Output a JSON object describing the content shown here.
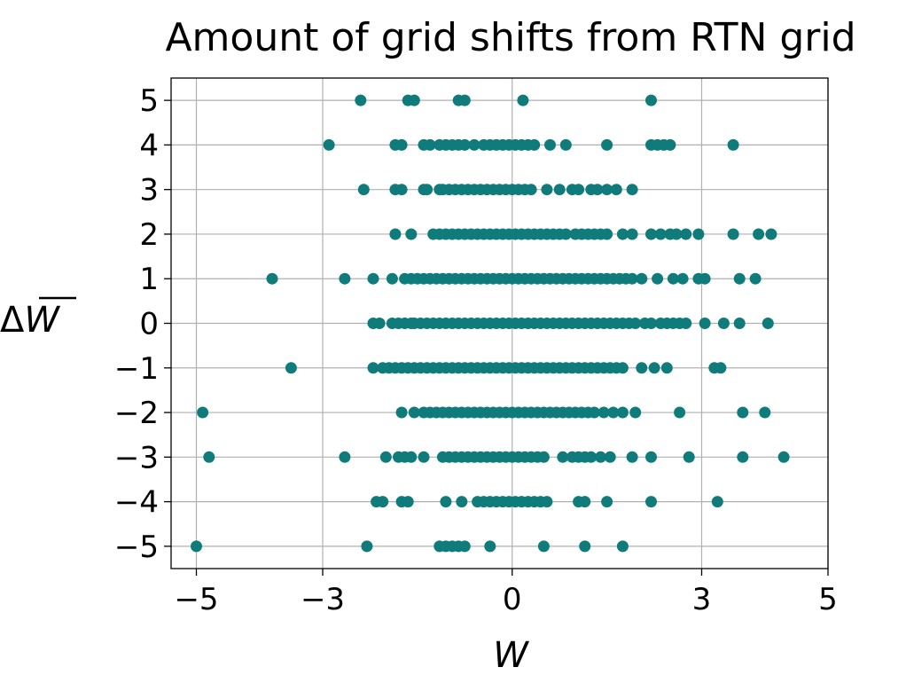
{
  "chart_data": {
    "type": "scatter",
    "title": "Amount of grid shifts from RTN grid",
    "xlabel": "W",
    "ylabel_prefix": "Δ",
    "ylabel": "W",
    "xlim": [
      -5.4,
      5.0
    ],
    "ylim": [
      -5.5,
      5.5
    ],
    "xticks": [
      -5,
      -3,
      0,
      3,
      5
    ],
    "xtick_labels": [
      "−5",
      "−3",
      "0",
      "3",
      "5"
    ],
    "yticks": [
      5,
      4,
      3,
      2,
      1,
      0,
      -1,
      -2,
      -3,
      -4,
      -5
    ],
    "ytick_labels": [
      "5",
      "4",
      "3",
      "2",
      "1",
      "0",
      "−1",
      "−2",
      "−3",
      "−4",
      "−5"
    ],
    "grid": true,
    "marker_color": "#0f7b7b",
    "points_by_level": {
      "5": [
        -2.4,
        -1.65,
        -1.55,
        -0.85,
        -0.75,
        0.17,
        2.2
      ],
      "4": [
        -2.9,
        -1.85,
        -1.75,
        -1.4,
        -1.3,
        -1.15,
        -1.05,
        -0.95,
        -0.85,
        -0.75,
        -0.6,
        -0.45,
        -0.35,
        -0.25,
        -0.15,
        -0.05,
        0.05,
        0.15,
        0.25,
        0.35,
        0.6,
        0.85,
        1.5,
        2.2,
        2.3,
        2.4,
        2.5,
        3.5
      ],
      "3": [
        -2.35,
        -1.85,
        -1.75,
        -1.4,
        -1.35,
        -1.15,
        -1.1,
        -1.0,
        -0.9,
        -0.8,
        -0.7,
        -0.6,
        -0.5,
        -0.4,
        -0.3,
        -0.2,
        -0.1,
        0.0,
        0.1,
        0.2,
        0.3,
        0.55,
        0.75,
        0.95,
        1.05,
        1.25,
        1.35,
        1.5,
        1.65,
        1.9
      ],
      "2": [
        -1.85,
        -1.6,
        -1.25,
        -1.15,
        -1.05,
        -0.95,
        -0.85,
        -0.75,
        -0.65,
        -0.55,
        -0.45,
        -0.35,
        -0.25,
        -0.15,
        -0.05,
        0.05,
        0.15,
        0.25,
        0.35,
        0.45,
        0.55,
        0.65,
        0.75,
        0.85,
        1.0,
        1.1,
        1.2,
        1.3,
        1.4,
        1.5,
        1.75,
        1.9,
        2.2,
        2.35,
        2.5,
        2.6,
        2.75,
        2.95,
        3.5,
        3.9,
        4.1
      ],
      "1": [
        -3.8,
        -2.65,
        -2.2,
        -1.9,
        -1.7,
        -1.6,
        -1.5,
        -1.4,
        -1.3,
        -1.2,
        -1.1,
        -1.0,
        -0.9,
        -0.8,
        -0.7,
        -0.6,
        -0.5,
        -0.4,
        -0.3,
        -0.2,
        -0.1,
        0.0,
        0.1,
        0.2,
        0.3,
        0.4,
        0.5,
        0.6,
        0.7,
        0.8,
        0.9,
        1.0,
        1.1,
        1.2,
        1.3,
        1.4,
        1.5,
        1.6,
        1.7,
        1.8,
        1.9,
        2.05,
        2.3,
        2.55,
        2.7,
        2.95,
        3.05,
        3.6,
        3.85
      ],
      "0": [
        -2.2,
        -2.1,
        -1.9,
        -1.8,
        -1.7,
        -1.6,
        -1.55,
        -1.45,
        -1.35,
        -1.25,
        -1.15,
        -1.05,
        -0.95,
        -0.85,
        -0.75,
        -0.65,
        -0.55,
        -0.45,
        -0.35,
        -0.25,
        -0.15,
        -0.05,
        0.05,
        0.15,
        0.25,
        0.35,
        0.45,
        0.55,
        0.65,
        0.75,
        0.85,
        0.95,
        1.05,
        1.15,
        1.25,
        1.35,
        1.45,
        1.55,
        1.65,
        1.75,
        1.85,
        1.95,
        2.1,
        2.2,
        2.35,
        2.45,
        2.55,
        2.65,
        2.75,
        3.05,
        3.35,
        3.6,
        4.05
      ],
      "-1": [
        -3.5,
        -2.2,
        -2.05,
        -1.95,
        -1.85,
        -1.75,
        -1.65,
        -1.55,
        -1.45,
        -1.35,
        -1.25,
        -1.15,
        -1.05,
        -0.95,
        -0.85,
        -0.75,
        -0.65,
        -0.55,
        -0.45,
        -0.35,
        -0.25,
        -0.15,
        -0.05,
        0.05,
        0.15,
        0.25,
        0.35,
        0.45,
        0.55,
        0.65,
        0.75,
        0.85,
        0.95,
        1.05,
        1.15,
        1.25,
        1.35,
        1.45,
        1.55,
        1.65,
        1.75,
        2.05,
        2.25,
        2.45,
        3.2,
        3.3
      ],
      "-2": [
        -4.9,
        -1.75,
        -1.55,
        -1.4,
        -1.3,
        -1.2,
        -1.1,
        -1.0,
        -0.9,
        -0.8,
        -0.7,
        -0.6,
        -0.5,
        -0.4,
        -0.3,
        -0.2,
        -0.1,
        0.0,
        0.1,
        0.2,
        0.3,
        0.4,
        0.5,
        0.6,
        0.7,
        0.8,
        0.9,
        1.0,
        1.1,
        1.2,
        1.3,
        1.45,
        1.6,
        1.75,
        1.95,
        2.65,
        3.65,
        4.0
      ],
      "-3": [
        -4.8,
        -2.65,
        -2.0,
        -1.8,
        -1.7,
        -1.6,
        -1.4,
        -1.1,
        -1.0,
        -0.9,
        -0.8,
        -0.7,
        -0.6,
        -0.5,
        -0.4,
        -0.3,
        -0.2,
        -0.1,
        0.0,
        0.1,
        0.2,
        0.3,
        0.4,
        0.5,
        0.8,
        0.95,
        1.05,
        1.15,
        1.25,
        1.4,
        1.55,
        1.9,
        2.2,
        2.8,
        3.65,
        4.3
      ],
      "-4": [
        -2.15,
        -2.05,
        -1.75,
        -1.65,
        -1.05,
        -0.8,
        -0.55,
        -0.45,
        -0.35,
        -0.25,
        -0.15,
        -0.05,
        0.05,
        0.15,
        0.25,
        0.35,
        0.45,
        0.55,
        1.05,
        1.15,
        1.5,
        2.2,
        3.25
      ],
      "-5": [
        -5.0,
        -2.3,
        -1.15,
        -1.05,
        -0.95,
        -0.85,
        -0.75,
        -0.35,
        0.5,
        1.15,
        1.75
      ]
    }
  }
}
